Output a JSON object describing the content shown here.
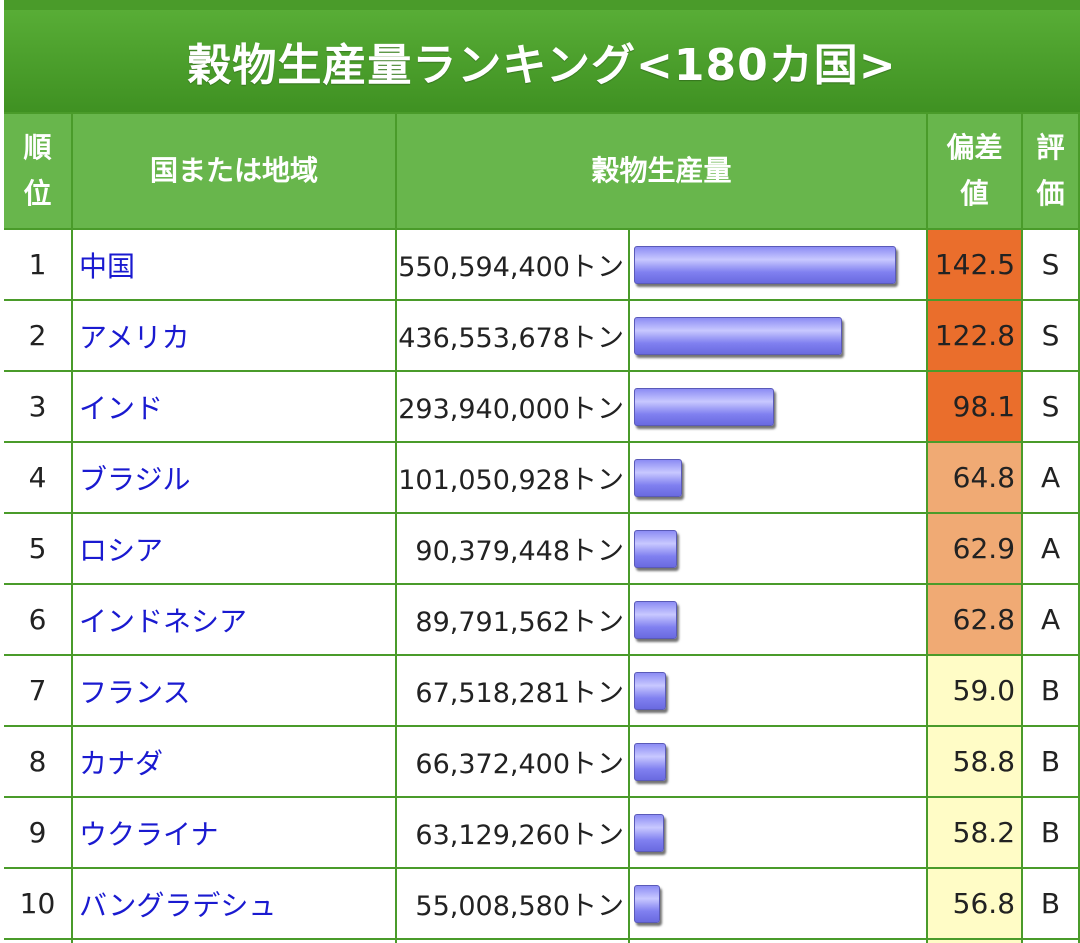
{
  "title": "穀物生産量ランキング<180カ国>",
  "headers": {
    "rank": "順\n位",
    "rank_lines": [
      "順",
      "位"
    ],
    "country": "国または地域",
    "production": "穀物生産量",
    "deviation_lines": [
      "偏差",
      "値"
    ],
    "grade_lines": [
      "評",
      "価"
    ]
  },
  "colors": {
    "header_green": "#4a9b2a",
    "column_header_green": "#68b64c",
    "link_blue": "#1a1ad0",
    "grade_s": "#ea6e2c",
    "grade_a": "#f0aa74",
    "grade_b": "#fffcc6",
    "bar_fill": "#8c8cf4"
  },
  "rows": [
    {
      "rank": "1",
      "country": "中国",
      "amount": "550,594,400トン",
      "share": 1.0,
      "deviation": "142.5",
      "grade": "S"
    },
    {
      "rank": "2",
      "country": "アメリカ",
      "amount": "436,553,678トン",
      "share": 0.793,
      "deviation": "122.8",
      "grade": "S"
    },
    {
      "rank": "3",
      "country": "インド",
      "amount": "293,940,000トン",
      "share": 0.534,
      "deviation": "98.1",
      "grade": "S"
    },
    {
      "rank": "4",
      "country": "ブラジル",
      "amount": "101,050,928トン",
      "share": 0.184,
      "deviation": "64.8",
      "grade": "A"
    },
    {
      "rank": "5",
      "country": "ロシア",
      "amount": "90,379,448トン",
      "share": 0.164,
      "deviation": "62.9",
      "grade": "A"
    },
    {
      "rank": "6",
      "country": "インドネシア",
      "amount": "89,791,562トン",
      "share": 0.163,
      "deviation": "62.8",
      "grade": "A"
    },
    {
      "rank": "7",
      "country": "フランス",
      "amount": "67,518,281トン",
      "share": 0.123,
      "deviation": "59.0",
      "grade": "B"
    },
    {
      "rank": "8",
      "country": "カナダ",
      "amount": "66,372,400トン",
      "share": 0.121,
      "deviation": "58.8",
      "grade": "B"
    },
    {
      "rank": "9",
      "country": "ウクライナ",
      "amount": "63,129,260トン",
      "share": 0.115,
      "deviation": "58.2",
      "grade": "B"
    },
    {
      "rank": "10",
      "country": "バングラデシュ",
      "amount": "55,008,580トン",
      "share": 0.1,
      "deviation": "56.8",
      "grade": "B"
    }
  ]
}
